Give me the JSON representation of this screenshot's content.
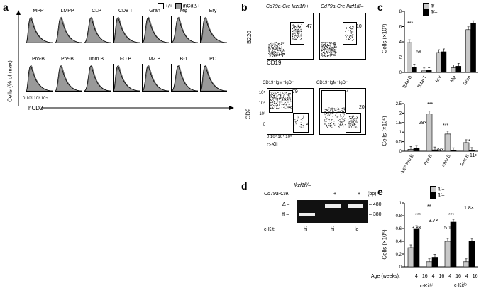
{
  "panel_a": {
    "label": "a",
    "legend": {
      "ctrl": "+/+",
      "treated": "ihCd2/+"
    },
    "row1": [
      "MPP",
      "LMPP",
      "CLP",
      "CD8 T",
      "Gran",
      "Mφ",
      "Ery"
    ],
    "row2": [
      "Pro-B",
      "Pre-B",
      "Imm B",
      "FO B",
      "MZ B",
      "B-1",
      "PC"
    ],
    "ylabel": "Cells (% of max)",
    "xlabel": "hCD2",
    "xticks": [
      "0",
      "10²",
      "10³",
      "10⁴"
    ]
  },
  "panel_b": {
    "label": "b",
    "col1_title": "Cd79a-Cre Ikzf1fl/+",
    "col2_title": "Cd79a-Cre Ikzf1fl/–",
    "top_ylabel": "B220",
    "top_xlabel": "CD19",
    "top_gates": [
      "47",
      "10"
    ],
    "bottom_title1": "CD19⁺IgM⁺IgD⁻",
    "bottom_title2": "CD19⁺IgM⁺IgD⁻",
    "bottom_ylabel": "CD2",
    "bottom_xlabel": "c-Kit",
    "bottom_gates1": [
      "79",
      "4"
    ],
    "bottom_gates2": [
      "4",
      "20"
    ],
    "xticks": [
      "0",
      "10³",
      "10⁴",
      "10⁵"
    ],
    "yticks": [
      "10⁵",
      "10⁴",
      "10³",
      "0"
    ]
  },
  "panel_c": {
    "label": "c",
    "legend": [
      "fl/+",
      "fl/–"
    ],
    "top_ylabel": "Cells (×10⁷)",
    "top_annotations": [
      "***",
      "6×"
    ],
    "bottom_ylabel": "Cells (×10⁶)",
    "bottom_annotations": [
      "***",
      "28×",
      "***",
      "29×",
      "*",
      "11×"
    ],
    "colors": {
      "fl_plus": "#c8c8c8",
      "fl_minus": "#000000"
    }
  },
  "panel_d": {
    "label": "d",
    "genotype": "Ikzf1fl/–",
    "cre_label": "Cd79a-Cre:",
    "cre_values": [
      "–",
      "+",
      "+"
    ],
    "bp_label": "(bp)",
    "band_labels": [
      "Δ –",
      "fl –"
    ],
    "bp_values": [
      "– 480",
      "– 380"
    ],
    "ckit_label": "c-Kit:",
    "ckit_values": [
      "hi",
      "hi",
      "lo"
    ]
  },
  "panel_e": {
    "label": "e",
    "legend": [
      "fl/+",
      "fl/–"
    ],
    "ylabel": "Cells (×10⁵)",
    "annotations": [
      "***",
      "**",
      "***",
      "3.8×",
      "3.7×",
      "5.1×",
      "1.8×"
    ],
    "age_label": "Age (weeks):",
    "age_values": [
      "4",
      "16",
      "4",
      "16",
      "4",
      "16",
      "4",
      "16"
    ],
    "group_labels": [
      "c-Kitʰⁱ",
      "c-Kitˡᵒ"
    ]
  },
  "chart_data": [
    {
      "type": "bar",
      "categories": [
        "Total B",
        "Total T",
        "Ery",
        "Mφ",
        "Gran"
      ],
      "series": [
        {
          "name": "fl/+",
          "values": [
            3.9,
            0.2,
            2.6,
            0.6,
            5.6
          ]
        },
        {
          "name": "fl/–",
          "values": [
            0.7,
            0.25,
            2.7,
            0.8,
            6.4
          ]
        }
      ],
      "ylabel": "Cells (×10⁷)",
      "ylim": [
        0,
        8
      ],
      "yticks": [
        0,
        2,
        4,
        6,
        8
      ]
    },
    {
      "type": "bar",
      "categories": [
        "c-Kitʰⁱ Pro B",
        "Pre B",
        "Imm B",
        "Rec B"
      ],
      "series": [
        {
          "name": "fl/+",
          "values": [
            0.1,
            1.95,
            0.9,
            0.45
          ]
        },
        {
          "name": "fl/–",
          "values": [
            0.15,
            0.07,
            0.03,
            0.04
          ]
        }
      ],
      "ylabel": "Cells (×10⁶)",
      "ylim": [
        0,
        2.5
      ],
      "yticks": [
        0,
        0.5,
        1.0,
        1.5,
        2.0,
        2.5
      ]
    },
    {
      "type": "bar",
      "categories": [
        "c-Kitʰⁱ 4",
        "c-Kitʰⁱ 16",
        "c-Kitˡᵒ 4",
        "c-Kitˡᵒ 16"
      ],
      "series": [
        {
          "name": "fl/+",
          "values": [
            0.3,
            0.08,
            0.4,
            0.08
          ]
        },
        {
          "name": "fl/–",
          "values": [
            0.6,
            0.15,
            0.7,
            0.4
          ]
        }
      ],
      "ylabel": "Cells (×10⁵)",
      "ylim": [
        0,
        1.0
      ],
      "yticks": [
        0,
        0.2,
        0.4,
        0.6,
        0.8,
        1.0
      ]
    }
  ]
}
